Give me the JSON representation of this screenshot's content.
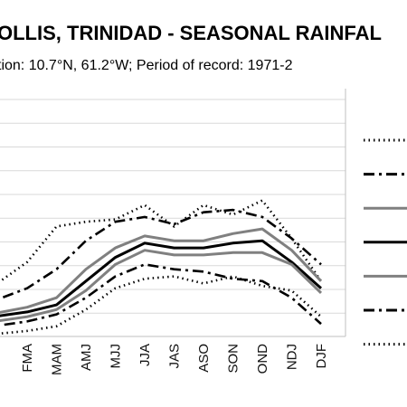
{
  "chart_data": {
    "type": "line",
    "title": "OLLIS, TRINIDAD - SEASONAL RAINFAL",
    "subtitle": "tion: 10.7°N, 61.2°W; Period of record: 1971-2",
    "categories": [
      "FMA",
      "MAM",
      "AMJ",
      "MJJ",
      "JJA",
      "JAS",
      "ASO",
      "SON",
      "OND",
      "NDJ",
      "DJF"
    ],
    "grid": true,
    "legend_position": "right",
    "series": [
      {
        "style": "dotted",
        "color": "#000000",
        "values": [
          6.85,
          5.35,
          5.15,
          5.05,
          4.45,
          5.35,
          4.45,
          4.85,
          4.25,
          5.85,
          7.65
        ]
      },
      {
        "style": "dash-dot",
        "color": "#000000",
        "values": [
          7.95,
          7.15,
          5.95,
          5.15,
          4.95,
          5.25,
          4.75,
          4.65,
          4.95,
          5.85,
          6.95
        ]
      },
      {
        "style": "solid",
        "color": "#808080",
        "values": [
          8.75,
          8.35,
          7.15,
          6.25,
          5.75,
          5.95,
          5.95,
          5.65,
          5.45,
          6.35,
          7.65
        ]
      },
      {
        "style": "solid",
        "color": "#000000",
        "values": [
          8.95,
          8.65,
          7.65,
          6.65,
          6.05,
          6.25,
          6.25,
          6.05,
          5.95,
          6.85,
          7.95
        ]
      },
      {
        "style": "solid",
        "color": "#808080",
        "values": [
          9.15,
          8.85,
          8.05,
          6.95,
          6.35,
          6.55,
          6.55,
          6.45,
          6.45,
          6.95,
          8.15
        ]
      },
      {
        "style": "dash-dot",
        "color": "#000000",
        "values": [
          9.35,
          9.05,
          8.35,
          7.45,
          6.95,
          7.15,
          7.25,
          7.55,
          7.65,
          8.35,
          9.45
        ]
      },
      {
        "style": "dotted",
        "color": "#000000",
        "values": [
          9.75,
          9.55,
          8.85,
          7.95,
          7.55,
          7.45,
          7.75,
          7.45,
          7.85,
          8.05,
          9.15
        ]
      }
    ]
  }
}
